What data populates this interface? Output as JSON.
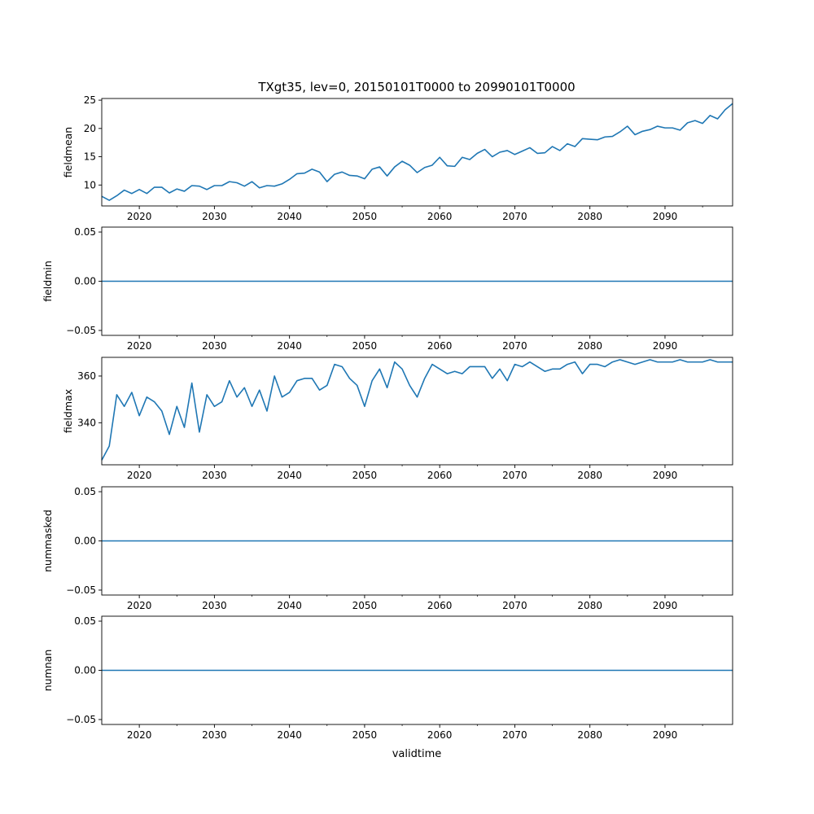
{
  "figure_title": "TXgt35, lev=0, 20150101T0000 to 20990101T0000",
  "xlabel": "validtime",
  "colors": {
    "line": "#1f77b4",
    "axis": "#000000",
    "background": "#ffffff"
  },
  "chart_data": [
    {
      "type": "line",
      "name": "fieldmean",
      "ylabel": "fieldmean",
      "x": [
        2015,
        2016,
        2017,
        2018,
        2019,
        2020,
        2021,
        2022,
        2023,
        2024,
        2025,
        2026,
        2027,
        2028,
        2029,
        2030,
        2031,
        2032,
        2033,
        2034,
        2035,
        2036,
        2037,
        2038,
        2039,
        2040,
        2041,
        2042,
        2043,
        2044,
        2045,
        2046,
        2047,
        2048,
        2049,
        2050,
        2051,
        2052,
        2053,
        2054,
        2055,
        2056,
        2057,
        2058,
        2059,
        2060,
        2061,
        2062,
        2063,
        2064,
        2065,
        2066,
        2067,
        2068,
        2069,
        2070,
        2071,
        2072,
        2073,
        2074,
        2075,
        2076,
        2077,
        2078,
        2079,
        2080,
        2081,
        2082,
        2083,
        2084,
        2085,
        2086,
        2087,
        2088,
        2089,
        2090,
        2091,
        2092,
        2093,
        2094,
        2095,
        2096,
        2097,
        2098,
        2099
      ],
      "values": [
        8.0,
        7.3,
        8.1,
        9.1,
        8.5,
        9.2,
        8.5,
        9.6,
        9.6,
        8.6,
        9.3,
        8.9,
        9.9,
        9.8,
        9.2,
        9.9,
        9.9,
        10.6,
        10.4,
        9.8,
        10.6,
        9.5,
        9.9,
        9.8,
        10.2,
        11.0,
        12.0,
        12.1,
        12.8,
        12.3,
        10.6,
        11.9,
        12.3,
        11.7,
        11.6,
        11.1,
        12.8,
        13.2,
        11.6,
        13.2,
        14.2,
        13.5,
        12.2,
        13.1,
        13.5,
        14.9,
        13.4,
        13.3,
        14.9,
        14.5,
        15.6,
        16.3,
        15.0,
        15.8,
        16.1,
        15.4,
        16.0,
        16.6,
        15.6,
        15.7,
        16.8,
        16.1,
        17.3,
        16.8,
        18.2,
        18.1,
        18.0,
        18.5,
        18.6,
        19.4,
        20.4,
        18.9,
        19.5,
        19.8,
        20.4,
        20.1,
        20.1,
        19.7,
        21.0,
        21.4,
        20.9,
        22.3,
        21.7,
        23.3,
        24.4
      ],
      "ylim": [
        6.3,
        25.3
      ],
      "yticks": [
        10,
        15,
        20,
        25
      ],
      "ytick_labels": [
        "10",
        "15",
        "20",
        "25"
      ]
    },
    {
      "type": "line",
      "name": "fieldmin",
      "ylabel": "fieldmin",
      "x": [
        2015,
        2099
      ],
      "values": [
        0,
        0
      ],
      "ylim": [
        -0.055,
        0.055
      ],
      "yticks": [
        -0.05,
        0.0,
        0.05
      ],
      "ytick_labels": [
        "−0.05",
        "0.00",
        "0.05"
      ]
    },
    {
      "type": "line",
      "name": "fieldmax",
      "ylabel": "fieldmax",
      "x": [
        2015,
        2016,
        2017,
        2018,
        2019,
        2020,
        2021,
        2022,
        2023,
        2024,
        2025,
        2026,
        2027,
        2028,
        2029,
        2030,
        2031,
        2032,
        2033,
        2034,
        2035,
        2036,
        2037,
        2038,
        2039,
        2040,
        2041,
        2042,
        2043,
        2044,
        2045,
        2046,
        2047,
        2048,
        2049,
        2050,
        2051,
        2052,
        2053,
        2054,
        2055,
        2056,
        2057,
        2058,
        2059,
        2060,
        2061,
        2062,
        2063,
        2064,
        2065,
        2066,
        2067,
        2068,
        2069,
        2070,
        2071,
        2072,
        2073,
        2074,
        2075,
        2076,
        2077,
        2078,
        2079,
        2080,
        2081,
        2082,
        2083,
        2084,
        2085,
        2086,
        2087,
        2088,
        2089,
        2090,
        2091,
        2092,
        2093,
        2094,
        2095,
        2096,
        2097,
        2098,
        2099
      ],
      "values": [
        324,
        330,
        352,
        347,
        353,
        343,
        351,
        349,
        345,
        335,
        347,
        338,
        357,
        336,
        352,
        347,
        349,
        358,
        351,
        355,
        347,
        354,
        345,
        360,
        351,
        353,
        358,
        359,
        359,
        354,
        356,
        365,
        364,
        359,
        356,
        347,
        358,
        363,
        355,
        366,
        363,
        356,
        351,
        359,
        365,
        363,
        361,
        362,
        361,
        364,
        364,
        364,
        359,
        363,
        358,
        365,
        364,
        366,
        364,
        362,
        363,
        363,
        365,
        366,
        361,
        365,
        365,
        364,
        366,
        367,
        366,
        365,
        366,
        367,
        366,
        366,
        366,
        367,
        366,
        366,
        366,
        367,
        366,
        366,
        366
      ],
      "ylim": [
        322,
        368
      ],
      "yticks": [
        340,
        360
      ],
      "ytick_labels": [
        "340",
        "360"
      ]
    },
    {
      "type": "line",
      "name": "nummasked",
      "ylabel": "nummasked",
      "x": [
        2015,
        2099
      ],
      "values": [
        0,
        0
      ],
      "ylim": [
        -0.055,
        0.055
      ],
      "yticks": [
        -0.05,
        0.0,
        0.05
      ],
      "ytick_labels": [
        "−0.05",
        "0.00",
        "0.05"
      ]
    },
    {
      "type": "line",
      "name": "numnan",
      "ylabel": "numnan",
      "x": [
        2015,
        2099
      ],
      "values": [
        0,
        0
      ],
      "ylim": [
        -0.055,
        0.055
      ],
      "yticks": [
        -0.05,
        0.0,
        0.05
      ],
      "ytick_labels": [
        "−0.05",
        "0.00",
        "0.05"
      ]
    }
  ],
  "x_axis": {
    "xlim": [
      2015,
      2099
    ],
    "ticks": [
      2020,
      2030,
      2040,
      2050,
      2060,
      2070,
      2080,
      2090
    ],
    "tick_labels": [
      "2020",
      "2030",
      "2040",
      "2050",
      "2060",
      "2070",
      "2080",
      "2090"
    ],
    "minor_ticks": [
      2025,
      2035,
      2045,
      2055,
      2065,
      2075,
      2085,
      2095
    ]
  }
}
